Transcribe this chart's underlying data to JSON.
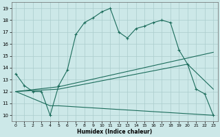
{
  "xlabel": "Humidex (Indice chaleur)",
  "bg_color": "#cce8e8",
  "grid_color": "#aacccc",
  "line_color": "#1a6b5a",
  "xlim": [
    -0.5,
    23.5
  ],
  "ylim": [
    9.5,
    19.5
  ],
  "xticks": [
    0,
    1,
    2,
    3,
    4,
    5,
    6,
    7,
    8,
    9,
    10,
    11,
    12,
    13,
    14,
    15,
    16,
    17,
    18,
    19,
    20,
    21,
    22,
    23
  ],
  "yticks": [
    10,
    11,
    12,
    13,
    14,
    15,
    16,
    17,
    18,
    19
  ],
  "line1_x": [
    0,
    1,
    2,
    3,
    4,
    5,
    6,
    7,
    8,
    9,
    10,
    11,
    12,
    13,
    14,
    15,
    16,
    17,
    18,
    19,
    20,
    21,
    22,
    23
  ],
  "line1_y": [
    13.5,
    12.5,
    12.0,
    12.0,
    10.0,
    12.5,
    13.8,
    16.8,
    17.8,
    18.2,
    18.7,
    19.0,
    17.0,
    16.5,
    17.3,
    17.5,
    17.8,
    18.0,
    17.8,
    15.5,
    14.3,
    12.2,
    11.8,
    10.0
  ],
  "line2_x": [
    0,
    5,
    23
  ],
  "line2_y": [
    12.0,
    12.4,
    15.3
  ],
  "line3_x": [
    0,
    5,
    20,
    23
  ],
  "line3_y": [
    12.0,
    12.2,
    14.3,
    12.2
  ],
  "line4_x": [
    0,
    4,
    5,
    23
  ],
  "line4_y": [
    12.0,
    10.8,
    10.8,
    10.0
  ]
}
